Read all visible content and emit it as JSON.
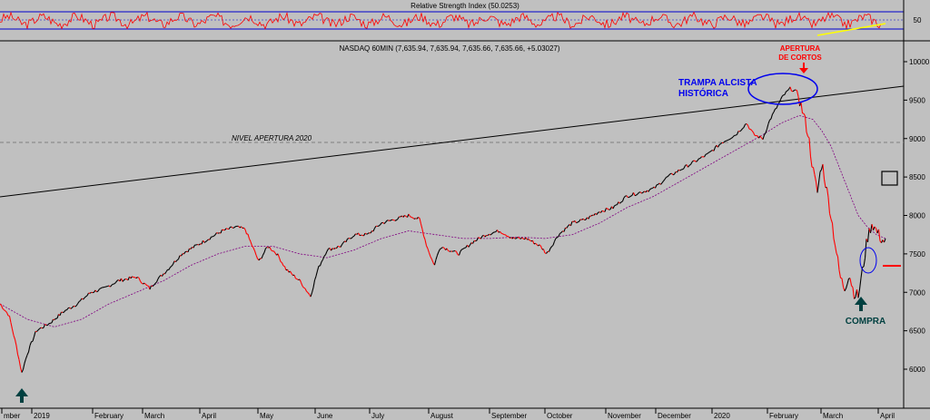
{
  "rsi": {
    "title": "Relative Strength Index (50.0253)",
    "level_label": "50"
  },
  "header": {
    "instrument_line": "NASDAQ 60MIN (7,635.94, 7,635.94, 7,635.66, 7,635.66, +5.03027)"
  },
  "annotations": {
    "nivel_apertura": "NIVEL APERTURA 2020",
    "trampa_line1": "TRAMPA ALCISTA",
    "trampa_line2": "HISTÓRICA",
    "apertura_line1": "APERTURA",
    "apertura_line2": "DE CORTOS",
    "compra": "COMPRA"
  },
  "colors": {
    "background": "#c0c0c0",
    "price_up": "#000000",
    "price_down": "#ff0000",
    "rsi_line": "#ff0000",
    "rsi_bands": "#0000cc",
    "moving_average": "#800080",
    "trendline_rsi": "#ffff00",
    "annotation_blue": "#0000ee",
    "annotation_red": "#ff0000",
    "compra_arrow": "#004040"
  },
  "chart_data": {
    "type": "line",
    "title": "NASDAQ 60MIN (7,635.94, 7,635.94, 7,635.66, 7,635.66, +5.03027)",
    "xlabel": "",
    "ylabel": "",
    "ylim": [
      5700,
      10300
    ],
    "y_ticks": [
      6000,
      6500,
      7000,
      7500,
      8000,
      8500,
      9000,
      9500,
      10000
    ],
    "x_ticks": [
      "mber",
      "2019",
      "February",
      "March",
      "April",
      "May",
      "June",
      "July",
      "August",
      "September",
      "October",
      "November",
      "December",
      "2020",
      "February",
      "March",
      "April"
    ],
    "reference_levels": [
      {
        "label": "NIVEL APERTURA 2020",
        "value": 8730
      }
    ],
    "series": [
      {
        "type": "line",
        "x": [
          0,
          10,
          18,
          24,
          30,
          40,
          55,
          70,
          85,
          100,
          115,
          130,
          150,
          165,
          172,
          185,
          200,
          215,
          230,
          245,
          260,
          270,
          285,
          295,
          305,
          315,
          330,
          342,
          350,
          360,
          375,
          390,
          405,
          420,
          435,
          450,
          462,
          470,
          478,
          485,
          495,
          505,
          520,
          535,
          550,
          565,
          580,
          595,
          602,
          615,
          630,
          645,
          660,
          675,
          690,
          705,
          720,
          735,
          750,
          765,
          780,
          795,
          810,
          822,
          830,
          840,
          848,
          855,
          862,
          870,
          878,
          885,
          890,
          895,
          900,
          905,
          910,
          915,
          920,
          925,
          930,
          935,
          940,
          945,
          950,
          955,
          960,
          965,
          970,
          975
        ],
        "y": [
          6850,
          6700,
          6300,
          5950,
          6200,
          6500,
          6600,
          6750,
          6850,
          7000,
          7050,
          7150,
          7200,
          7050,
          7150,
          7300,
          7500,
          7600,
          7700,
          7800,
          7850,
          7820,
          7400,
          7600,
          7500,
          7300,
          7150,
          6950,
          7300,
          7550,
          7600,
          7750,
          7750,
          7900,
          7950,
          8000,
          7950,
          7600,
          7350,
          7600,
          7550,
          7500,
          7650,
          7750,
          7800,
          7700,
          7700,
          7600,
          7500,
          7750,
          7900,
          7950,
          8050,
          8100,
          8250,
          8300,
          8350,
          8500,
          8600,
          8700,
          8800,
          8950,
          9050,
          9200,
          9050,
          9000,
          9250,
          9400,
          9550,
          9650,
          9600,
          9300,
          9050,
          8600,
          8300,
          8700,
          8350,
          8000,
          7600,
          7200,
          7050,
          7250,
          7000,
          6950,
          7300,
          7700,
          7900,
          7800,
          7700,
          7650
        ]
      },
      {
        "type": "moving_average",
        "x": [
          0,
          30,
          60,
          90,
          120,
          150,
          180,
          210,
          240,
          270,
          300,
          330,
          360,
          390,
          420,
          450,
          480,
          510,
          540,
          570,
          600,
          630,
          660,
          690,
          720,
          750,
          780,
          810,
          840,
          860,
          880,
          895,
          905,
          915,
          925,
          935,
          945,
          955,
          965,
          975
        ],
        "y": [
          6850,
          6650,
          6550,
          6650,
          6850,
          7000,
          7150,
          7350,
          7500,
          7600,
          7600,
          7500,
          7450,
          7550,
          7700,
          7800,
          7750,
          7700,
          7700,
          7720,
          7700,
          7750,
          7900,
          8100,
          8250,
          8450,
          8650,
          8850,
          9050,
          9200,
          9300,
          9250,
          9100,
          8900,
          8600,
          8300,
          8000,
          7850,
          7750,
          7700
        ]
      }
    ],
    "rsi": {
      "title": "Relative Strength Index (50.0253)",
      "ylim": [
        0,
        100
      ],
      "levels": [
        30,
        50,
        70
      ],
      "y_ticks": [
        50
      ]
    }
  }
}
